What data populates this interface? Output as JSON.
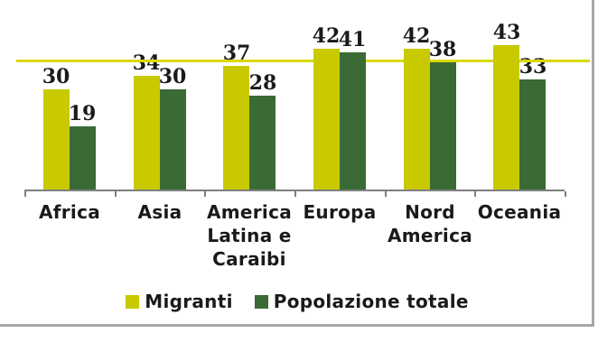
{
  "chart_data": {
    "type": "bar",
    "title": "",
    "xlabel": "",
    "ylabel": "",
    "categories": [
      "Africa",
      "Asia",
      "America Latina e Caraibi",
      "Europa",
      "Nord America",
      "Oceania"
    ],
    "category_labels_wrapped": [
      "Africa",
      "Asia",
      "America\nLatina e\nCaraibi",
      "Europa",
      "Nord\nAmerica",
      "Oceania"
    ],
    "series": [
      {
        "name": "Migranti",
        "color": "#c9c900",
        "values": [
          30,
          34,
          37,
          42,
          42,
          43
        ]
      },
      {
        "name": "Popolazione totale",
        "color": "#3a6b35",
        "values": [
          19,
          30,
          28,
          41,
          38,
          33
        ]
      }
    ],
    "data_labels": true,
    "reference_line": {
      "value": 38.4,
      "color": "#d9d900"
    },
    "ylim": [
      0,
      56
    ],
    "grid": false,
    "legend_position": "bottom"
  },
  "legend": {
    "items": [
      {
        "label": "Migranti",
        "color": "#c9c900"
      },
      {
        "label": "Popolazione totale",
        "color": "#3a6b35"
      }
    ]
  },
  "colors": {
    "axis": "#7f7f7f",
    "frame_shadow": "#a6a6a6",
    "text": "#1a1a1a",
    "background": "#ffffff"
  }
}
